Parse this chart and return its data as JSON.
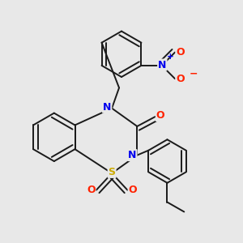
{
  "background_color": "#e8e8e8",
  "bond_color": "#1a1a1a",
  "atom_colors": {
    "N": "#0000ee",
    "O": "#ff2200",
    "S": "#ccaa00",
    "C": "#1a1a1a"
  }
}
